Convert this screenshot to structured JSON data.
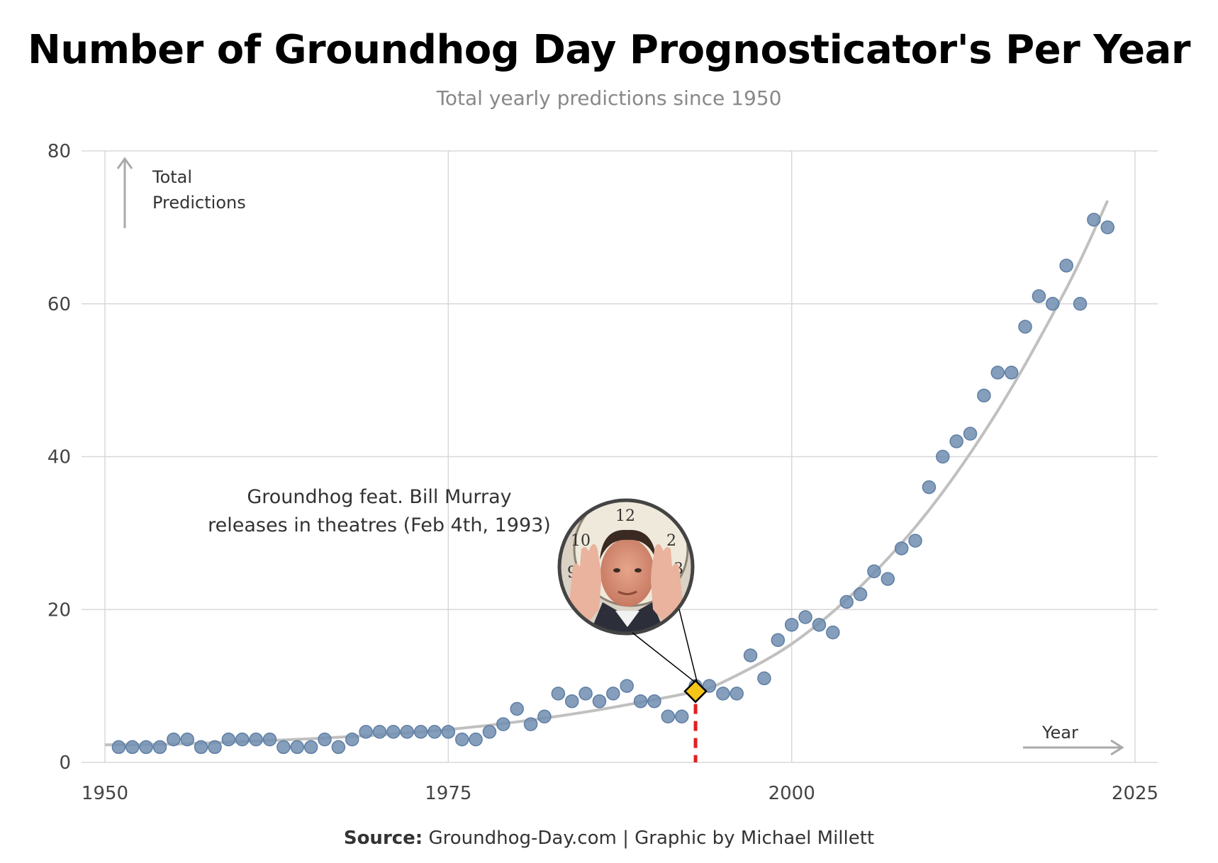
{
  "title": "Number of Groundhog Day Prognosticator's Per Year",
  "subtitle": "Total yearly predictions since 1950",
  "source": {
    "label": "Source:",
    "text": " Groundhog-Day.com | Graphic by Michael Millett"
  },
  "colors": {
    "points": "#6f8db0",
    "trend": "#c0c0c0",
    "highlight": "#f5c518",
    "marker_line": "#e02020",
    "grid": "#d8d8d8"
  },
  "chart_data": {
    "type": "scatter",
    "title": "Number of Groundhog Day Prognosticator's Per Year",
    "subtitle": "Total yearly predictions since 1950",
    "xlabel": "Year",
    "ylabel": "Total Predictions",
    "ylabel_lines": [
      "Total",
      "Predictions"
    ],
    "xlim": [
      1950,
      2027
    ],
    "ylim": [
      0,
      80
    ],
    "xticks": [
      1950,
      1975,
      2000,
      2025
    ],
    "yticks": [
      0,
      20,
      40,
      60,
      80
    ],
    "grid": true,
    "x": [
      1951,
      1952,
      1953,
      1954,
      1955,
      1956,
      1957,
      1958,
      1959,
      1960,
      1961,
      1962,
      1963,
      1964,
      1965,
      1966,
      1967,
      1968,
      1969,
      1970,
      1971,
      1972,
      1973,
      1974,
      1975,
      1976,
      1977,
      1978,
      1979,
      1980,
      1981,
      1982,
      1983,
      1984,
      1985,
      1986,
      1987,
      1988,
      1989,
      1990,
      1991,
      1992,
      1993,
      1994,
      1995,
      1996,
      1997,
      1998,
      1999,
      2000,
      2001,
      2002,
      2003,
      2004,
      2005,
      2006,
      2007,
      2008,
      2009,
      2010,
      2011,
      2012,
      2013,
      2014,
      2015,
      2016,
      2017,
      2018,
      2019,
      2020,
      2021,
      2022,
      2023
    ],
    "y": [
      2,
      2,
      2,
      2,
      3,
      3,
      2,
      2,
      3,
      3,
      3,
      3,
      2,
      2,
      2,
      3,
      2,
      3,
      4,
      4,
      4,
      4,
      4,
      4,
      4,
      3,
      3,
      4,
      5,
      7,
      5,
      6,
      9,
      8,
      9,
      8,
      9,
      10,
      8,
      8,
      6,
      6,
      10,
      10,
      9,
      9,
      14,
      11,
      16,
      18,
      19,
      18,
      17,
      21,
      22,
      25,
      24,
      28,
      29,
      36,
      40,
      42,
      43,
      48,
      51,
      51,
      57,
      61,
      60,
      65,
      60,
      71,
      70
    ],
    "trend": {
      "x": [
        1950,
        1955,
        1960,
        1965,
        1970,
        1975,
        1980,
        1985,
        1990,
        1993,
        1995,
        2000,
        2005,
        2010,
        2015,
        2020,
        2023
      ],
      "y": [
        2.3,
        2.4,
        2.7,
        3.1,
        3.6,
        4.3,
        5.3,
        6.6,
        8.2,
        9.3,
        10.5,
        15.5,
        23,
        33,
        46,
        62,
        73.5
      ]
    },
    "highlight": {
      "x": 1993,
      "y": 9.3
    },
    "annotation": {
      "lines": [
        "Groundhog feat. Bill Murray",
        "releases in theatres (Feb 4th, 1993)"
      ]
    },
    "x_arrow_label": "Year"
  }
}
